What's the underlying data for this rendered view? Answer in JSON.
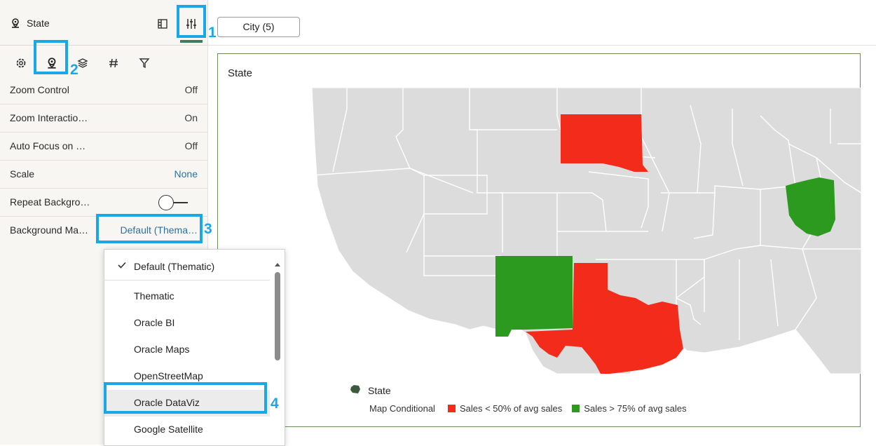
{
  "panel": {
    "title": "State",
    "properties": [
      {
        "label": "Zoom Control",
        "value": "Off"
      },
      {
        "label": "Zoom Interactio…",
        "value": "On"
      },
      {
        "label": "Auto Focus on …",
        "value": "Off"
      },
      {
        "label": "Scale",
        "value": "None"
      },
      {
        "label": "Repeat Backgro…",
        "value": ""
      },
      {
        "label": "Background Ma…",
        "value": "Default (Thema…"
      }
    ],
    "repeat_background_on": false
  },
  "dropdown": {
    "options": [
      "Default (Thematic)",
      "Thematic",
      "Oracle BI",
      "Oracle Maps",
      "OpenStreetMap",
      "Oracle DataViz",
      "Google Satellite"
    ],
    "selected": "Default (Thematic)",
    "hovered": "Oracle DataViz"
  },
  "filter": {
    "city_label": "City (5)"
  },
  "viz": {
    "title": "State",
    "legend": {
      "layer_label": "State",
      "conditional_label": "Map Conditional",
      "entries": [
        {
          "label": "Sales < 50% of avg sales",
          "color": "#f22b1b"
        },
        {
          "label": "Sales > 75% of avg sales",
          "color": "#2b9a1e"
        }
      ]
    }
  },
  "callouts": [
    "1",
    "2",
    "3",
    "4"
  ],
  "colors": {
    "accent": "#1aa7e8",
    "map_base": "#dcdcdc",
    "active_tab": "#3f7e5a"
  }
}
